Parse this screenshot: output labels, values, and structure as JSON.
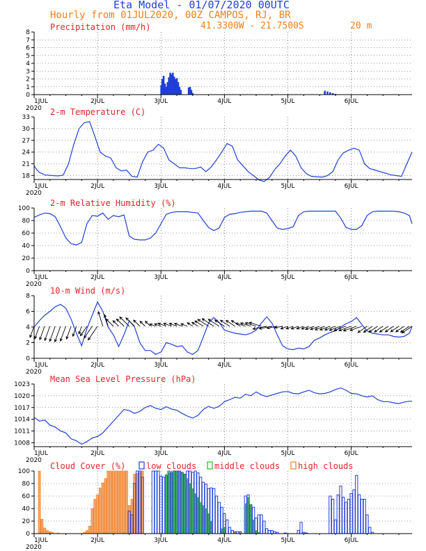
{
  "header": {
    "title": "Eta Model - 01/07/2020 00UTC",
    "line2": "Hourly from 01JUL2020, 00Z  CAMPOS, RJ, BR",
    "coords": "41.3300W - 21.7500S",
    "elev": "20  m"
  },
  "colors": {
    "title": "#1f3fd6",
    "subtitle": "#f07f1e",
    "panel_title": "#e0242a",
    "series": "#1f3fd6",
    "mid": "#18c018",
    "high": "#f07f1e"
  },
  "chart_data": [
    {
      "type": "bar",
      "id": "precip",
      "title": "Precipitation (mm/h)",
      "ylim": [
        0,
        8
      ],
      "yticks": [
        "0",
        "1",
        "2",
        "3",
        "4",
        "5",
        "6",
        "7",
        "8"
      ],
      "x_labels": [
        "1JUL",
        "2JUL",
        "3JUL",
        "4JUL",
        "5JUL",
        "6JUL"
      ],
      "year": "2020",
      "grid": true,
      "bars": [
        [
          48.1,
          1.2
        ],
        [
          48.5,
          2.0
        ],
        [
          49.0,
          2.4
        ],
        [
          49.5,
          1.4
        ],
        [
          50.0,
          1.0
        ],
        [
          50.5,
          1.6
        ],
        [
          51.0,
          2.2
        ],
        [
          51.5,
          2.8
        ],
        [
          52.0,
          2.6
        ],
        [
          52.5,
          2.8
        ],
        [
          53.0,
          2.3
        ],
        [
          53.5,
          2.0
        ],
        [
          54.0,
          2.1
        ],
        [
          54.5,
          1.6
        ],
        [
          55.0,
          1.0
        ],
        [
          55.5,
          0.6
        ],
        [
          58.5,
          0.9
        ],
        [
          59.0,
          1.0
        ],
        [
          59.5,
          0.6
        ],
        [
          60.0,
          0.2
        ],
        [
          110.0,
          0.5
        ],
        [
          111.0,
          0.4
        ],
        [
          112.0,
          0.3
        ],
        [
          113.0,
          0.2
        ],
        [
          114.0,
          0.1
        ]
      ]
    },
    {
      "type": "line",
      "id": "temp",
      "title": "2-m Temperature (C)",
      "ylim": [
        17,
        33
      ],
      "yticks": [
        "18",
        "21",
        "24",
        "27",
        "30",
        "33"
      ],
      "x_labels": [
        "1JUL",
        "2JUL",
        "3JUL",
        "4JUL",
        "5JUL",
        "6JUL"
      ],
      "year": "2020",
      "grid": true,
      "x": [
        0,
        1,
        2,
        4,
        7,
        9,
        11,
        13,
        15,
        17,
        19,
        21,
        23,
        25,
        27,
        29,
        31,
        33,
        35,
        37,
        39,
        41,
        43,
        45,
        47,
        49,
        51,
        53,
        55,
        57,
        59,
        61,
        63,
        65,
        67,
        69,
        71,
        73,
        75,
        77,
        79,
        81,
        83,
        85,
        87,
        89,
        91,
        93,
        95,
        97,
        99,
        101,
        103,
        105,
        107,
        109,
        111,
        113,
        115,
        117,
        119,
        121,
        123,
        125,
        127,
        129,
        131,
        133,
        135,
        137,
        139,
        141,
        143
      ],
      "y": [
        20.5,
        19.5,
        18.8,
        18.2,
        18.0,
        17.9,
        18.1,
        21,
        26,
        30,
        31.5,
        31.8,
        28,
        24,
        23.0,
        22.5,
        20,
        19.2,
        19.4,
        17.8,
        17.6,
        21.5,
        24,
        24.5,
        26.0,
        25.0,
        22.0,
        21.0,
        20.0,
        20.0,
        19.8,
        19.8,
        20.2,
        19.0,
        20.2,
        22.0,
        24.0,
        26.2,
        25.5,
        22.0,
        20.5,
        19.0,
        18.0,
        16.9,
        16.5,
        17.5,
        19.5,
        21.0,
        23.0,
        24.5,
        23.0,
        20.0,
        18.5,
        17.8,
        17.7,
        17.6,
        18.0,
        19.0,
        22.0,
        23.8,
        24.5,
        25.0,
        24.5,
        21.0,
        19.8,
        19.4,
        19.0,
        18.6,
        18.2,
        18.0,
        17.8,
        21.0,
        24.0
      ]
    },
    {
      "type": "line",
      "id": "rh",
      "title": "2-m Relative Humidity (%)",
      "ylim": [
        0,
        100
      ],
      "yticks": [
        "0",
        "20",
        "40",
        "60",
        "80",
        "100"
      ],
      "x_labels": [
        "1JUL",
        "2JUL",
        "3JUL",
        "4JUL",
        "5JUL",
        "6JUL"
      ],
      "year": "2020",
      "grid": true,
      "x": [
        0,
        2,
        4,
        6,
        8,
        10,
        12,
        14,
        16,
        18,
        20,
        22,
        24,
        26,
        28,
        30,
        32,
        34,
        36,
        38,
        40,
        42,
        44,
        46,
        48,
        50,
        52,
        54,
        56,
        58,
        60,
        62,
        64,
        66,
        68,
        70,
        72,
        74,
        76,
        78,
        80,
        82,
        84,
        86,
        88,
        90,
        92,
        94,
        96,
        98,
        100,
        102,
        104,
        106,
        108,
        110,
        112,
        114,
        116,
        118,
        120,
        122,
        124,
        126,
        128,
        130,
        132,
        134,
        136,
        138,
        140,
        142,
        143
      ],
      "y": [
        85,
        89,
        92,
        91,
        86,
        70,
        52,
        43,
        41,
        45,
        75,
        88,
        87,
        92,
        82,
        88,
        86,
        89,
        55,
        50,
        49,
        49,
        52,
        60,
        75,
        90,
        93,
        94,
        94,
        94,
        93,
        92,
        80,
        69,
        64,
        68,
        85,
        90,
        91,
        93,
        94,
        95,
        95,
        95,
        92,
        80,
        68,
        66,
        67,
        70,
        88,
        94,
        95,
        95,
        95,
        95,
        95,
        95,
        84,
        69,
        66,
        66,
        72,
        88,
        94,
        95,
        95,
        95,
        95,
        94,
        92,
        88,
        75
      ]
    },
    {
      "type": "line",
      "id": "wind",
      "title": "10-m Wind (m/s)",
      "ylim": [
        0,
        8
      ],
      "yticks": [
        "0",
        "2",
        "4",
        "6",
        "8"
      ],
      "x_labels": [
        "1JUL",
        "2JUL",
        "3JUL",
        "4JUL",
        "5JUL",
        "6JUL"
      ],
      "year": "2020",
      "grid": true,
      "x": [
        0,
        2,
        4,
        6,
        8,
        10,
        12,
        14,
        16,
        18,
        20,
        22,
        24,
        26,
        28,
        30,
        32,
        34,
        36,
        38,
        40,
        42,
        44,
        46,
        48,
        50,
        52,
        54,
        56,
        58,
        60,
        62,
        64,
        66,
        68,
        70,
        72,
        74,
        76,
        78,
        80,
        82,
        84,
        86,
        88,
        90,
        92,
        94,
        96,
        98,
        100,
        102,
        104,
        106,
        108,
        110,
        112,
        114,
        116,
        118,
        120,
        122,
        124,
        126,
        128,
        130,
        132,
        134,
        136,
        138,
        140,
        142,
        143
      ],
      "y": [
        4.0,
        4.8,
        5.5,
        6.0,
        6.6,
        6.9,
        6.4,
        5.0,
        3.2,
        1.6,
        3.8,
        5.5,
        7.2,
        6.0,
        4.0,
        3.0,
        1.5,
        3.0,
        4.8,
        4.0,
        2.0,
        1.0,
        1.0,
        0.5,
        0.8,
        2.0,
        1.8,
        1.5,
        1.6,
        0.8,
        0.5,
        1.0,
        2.7,
        4.5,
        5.2,
        4.6,
        3.6,
        3.4,
        3.2,
        3.1,
        3.0,
        3.2,
        3.6,
        4.5,
        5.3,
        4.5,
        3.0,
        1.6,
        1.2,
        1.1,
        1.3,
        1.2,
        1.5,
        2.3,
        2.6,
        3.0,
        3.3,
        3.5,
        4.0,
        4.4,
        4.7,
        5.2,
        4.3,
        3.5,
        3.2,
        3.1,
        3.0,
        3.0,
        2.8,
        2.7,
        2.8,
        3.2,
        4.1
      ],
      "arrow_every": 1
    },
    {
      "type": "line",
      "id": "mslp",
      "title": "Mean Sea Level Pressure (hPa)",
      "ylim": [
        1007,
        1023
      ],
      "yticks": [
        "1008",
        "1011",
        "1014",
        "1017",
        "1020",
        "1023"
      ],
      "x_labels": [
        "1JUL",
        "2JUL",
        "3JUL",
        "4JUL",
        "5JUL",
        "6JUL"
      ],
      "year": "2020",
      "grid": true,
      "x": [
        0,
        2,
        4,
        6,
        8,
        10,
        12,
        14,
        16,
        18,
        20,
        22,
        24,
        26,
        28,
        30,
        32,
        34,
        36,
        38,
        40,
        42,
        44,
        46,
        48,
        50,
        52,
        54,
        56,
        58,
        60,
        62,
        64,
        66,
        68,
        70,
        72,
        74,
        76,
        78,
        80,
        82,
        84,
        86,
        88,
        90,
        92,
        94,
        96,
        98,
        100,
        102,
        104,
        106,
        108,
        110,
        112,
        114,
        116,
        118,
        120,
        122,
        124,
        126,
        128,
        130,
        132,
        134,
        136,
        138,
        140,
        142,
        143
      ],
      "y": [
        1014.5,
        1013.5,
        1013.8,
        1012.5,
        1012.0,
        1011.0,
        1010.5,
        1009.0,
        1008.5,
        1007.6,
        1008.3,
        1009.2,
        1009.6,
        1010.5,
        1012.0,
        1013.5,
        1015.0,
        1016.5,
        1016.2,
        1015.5,
        1016.0,
        1017.0,
        1017.5,
        1016.8,
        1016.5,
        1017.2,
        1016.6,
        1016.3,
        1015.5,
        1014.8,
        1014.3,
        1015.0,
        1016.5,
        1017.3,
        1016.8,
        1017.3,
        1018.5,
        1019.0,
        1019.6,
        1019.4,
        1020.4,
        1020.0,
        1021.0,
        1020.2,
        1019.8,
        1020.2,
        1020.6,
        1021.0,
        1021.1,
        1020.6,
        1020.5,
        1021.0,
        1021.4,
        1020.8,
        1020.5,
        1020.6,
        1021.0,
        1021.6,
        1022.0,
        1021.4,
        1020.6,
        1020.5,
        1020.0,
        1019.7,
        1020.0,
        1019.0,
        1018.5,
        1018.5,
        1018.2,
        1018.0,
        1018.4,
        1018.6,
        1018.6
      ]
    },
    {
      "type": "bar",
      "id": "cloud",
      "title": "Cloud Cover (%)",
      "ylim": [
        0,
        100
      ],
      "yticks": [
        "0",
        "20",
        "40",
        "60",
        "80",
        "100"
      ],
      "x_labels": [
        "1JUL",
        "2JUL",
        "3JUL",
        "4JUL",
        "5JUL",
        "6JUL"
      ],
      "year": "2020",
      "grid": true,
      "legend": [
        "low clouds",
        "middle clouds",
        "high clouds"
      ],
      "high": [
        [
          2,
          100
        ],
        [
          3,
          23
        ],
        [
          4,
          9
        ],
        [
          5,
          5
        ],
        [
          6,
          3
        ],
        [
          7,
          2
        ],
        [
          9,
          1
        ],
        [
          19,
          2
        ],
        [
          20,
          5
        ],
        [
          21,
          12
        ],
        [
          22,
          40
        ],
        [
          23,
          55
        ],
        [
          24,
          62
        ],
        [
          25,
          73
        ],
        [
          26,
          81
        ],
        [
          27,
          88
        ],
        [
          28,
          100
        ],
        [
          29,
          100
        ],
        [
          30,
          100
        ],
        [
          31,
          100
        ],
        [
          32,
          100
        ],
        [
          33,
          100
        ],
        [
          34,
          100
        ],
        [
          35,
          100
        ],
        [
          36,
          45
        ],
        [
          37,
          55
        ],
        [
          38,
          95
        ],
        [
          39,
          96
        ],
        [
          40,
          98
        ],
        [
          41,
          100
        ],
        [
          76,
          2
        ],
        [
          78,
          2
        ]
      ],
      "mid": [
        [
          26,
          1
        ],
        [
          27,
          1
        ],
        [
          28,
          1
        ],
        [
          34,
          1
        ],
        [
          50,
          95
        ],
        [
          51,
          98
        ],
        [
          52,
          100
        ],
        [
          53,
          100
        ],
        [
          54,
          100
        ],
        [
          55,
          100
        ],
        [
          56,
          98
        ],
        [
          57,
          95
        ],
        [
          58,
          88
        ],
        [
          59,
          80
        ],
        [
          60,
          72
        ],
        [
          61,
          64
        ],
        [
          62,
          58
        ],
        [
          63,
          50
        ],
        [
          64,
          45
        ],
        [
          65,
          40
        ],
        [
          66,
          32
        ],
        [
          67,
          20
        ],
        [
          71,
          8
        ],
        [
          72,
          10
        ],
        [
          80,
          48
        ],
        [
          81,
          58
        ],
        [
          82,
          47
        ],
        [
          83,
          22
        ],
        [
          84,
          5
        ],
        [
          85,
          2
        ]
      ],
      "low": [
        [
          36,
          36
        ],
        [
          37,
          30
        ],
        [
          38,
          80
        ],
        [
          39,
          100
        ],
        [
          40,
          100
        ],
        [
          41,
          90
        ],
        [
          45,
          100
        ],
        [
          46,
          100
        ],
        [
          47,
          100
        ],
        [
          48,
          92
        ],
        [
          49,
          90
        ],
        [
          50,
          93
        ],
        [
          51,
          100
        ],
        [
          52,
          97
        ],
        [
          53,
          100
        ],
        [
          54,
          100
        ],
        [
          55,
          100
        ],
        [
          56,
          98
        ],
        [
          57,
          95
        ],
        [
          58,
          100
        ],
        [
          59,
          100
        ],
        [
          60,
          98
        ],
        [
          61,
          100
        ],
        [
          62,
          97
        ],
        [
          63,
          90
        ],
        [
          64,
          82
        ],
        [
          65,
          79
        ],
        [
          66,
          72
        ],
        [
          67,
          73
        ],
        [
          68,
          72
        ],
        [
          69,
          60
        ],
        [
          70,
          50
        ],
        [
          71,
          42
        ],
        [
          72,
          32
        ],
        [
          73,
          22
        ],
        [
          74,
          10
        ],
        [
          75,
          5
        ],
        [
          76,
          3
        ],
        [
          77,
          3
        ],
        [
          78,
          3
        ],
        [
          80,
          60
        ],
        [
          81,
          62
        ],
        [
          82,
          46
        ],
        [
          83,
          42
        ],
        [
          84,
          25
        ],
        [
          85,
          30
        ],
        [
          86,
          30
        ],
        [
          87,
          20
        ],
        [
          88,
          8
        ],
        [
          89,
          5
        ],
        [
          90,
          5
        ],
        [
          91,
          3
        ],
        [
          92,
          2
        ],
        [
          95,
          1
        ],
        [
          100,
          5
        ],
        [
          101,
          18
        ],
        [
          102,
          2
        ],
        [
          103,
          1
        ],
        [
          112,
          60
        ],
        [
          113,
          55
        ],
        [
          114,
          22
        ],
        [
          115,
          62
        ],
        [
          116,
          76
        ],
        [
          117,
          58
        ],
        [
          118,
          50
        ],
        [
          119,
          55
        ],
        [
          120,
          64
        ],
        [
          121,
          70
        ],
        [
          122,
          93
        ],
        [
          123,
          62
        ],
        [
          124,
          55
        ],
        [
          125,
          55
        ],
        [
          126,
          30
        ],
        [
          127,
          10
        ],
        [
          128,
          2
        ]
      ]
    }
  ]
}
